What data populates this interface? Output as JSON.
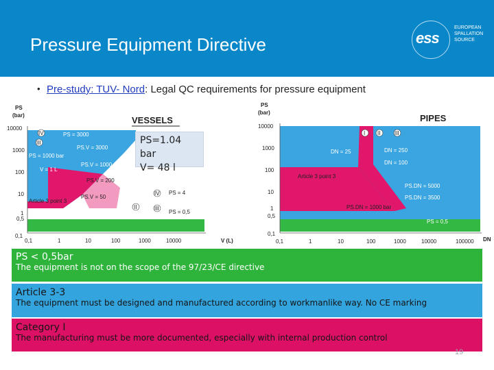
{
  "header": {
    "title": "Pressure Equipment Directive",
    "logo_mark": "ess",
    "logo_text": "EUROPEAN\nSPALLATION\nSOURCE"
  },
  "bullet": {
    "link_text": "Pre-study: TUV- Nord",
    "rest_text": ": Legal QC requirements for pressure equipment"
  },
  "callout": {
    "line1": "PS=1.04 bar",
    "line2": "V= 48 l"
  },
  "figure": {
    "vessels": {
      "title": "VESSELS",
      "y_unit": "PS",
      "y_unit2": "(bar)",
      "x_unit": "V (L)",
      "y_ticks": [
        "10000",
        "1000",
        "100",
        "10",
        "1",
        "0,5",
        "0,1"
      ],
      "x_ticks": [
        "0,1",
        "1",
        "10",
        "100",
        "1000",
        "10000"
      ],
      "zone_labels": {
        "ps3000": "PS = 3000",
        "psv3000": "PS.V = 3000",
        "ps1000": "PS = 1000 bar",
        "psv1000": "PS.V = 1000",
        "v1": "V = 1 L",
        "psv200": "PS.V = 200",
        "psv50": "PS.V = 50",
        "ps4": "PS = 4",
        "ps05": "PS = 0,5",
        "art33": "Article 3 point 3"
      },
      "roman": [
        "IV",
        "III",
        "IV",
        "II",
        "III"
      ]
    },
    "pipes": {
      "title": "PIPES",
      "y_unit": "PS",
      "y_unit2": "(bar)",
      "x_unit": "DN",
      "y_ticks": [
        "10000",
        "1000",
        "100",
        "10",
        "1",
        "0,5",
        "0,1"
      ],
      "x_ticks": [
        "0,1",
        "1",
        "10",
        "100",
        "1000",
        "10000",
        "100000"
      ],
      "zone_labels": {
        "dn25": "DN = 25",
        "dn250": "DN = 250",
        "dn100": "DN = 100",
        "art33": "Article 3 point 3",
        "psdn5000": "PS.DN = 5000",
        "psdn3500": "PS.DN = 3500",
        "psdn1000": "PS.DN = 1000 bar",
        "ps05": "PS = 0,5"
      },
      "roman": [
        "I",
        "II",
        "III"
      ]
    }
  },
  "boxes": {
    "green": {
      "heading": "PS < 0,5bar",
      "text": "The equipment is not on the scope of the 97/23/CE directive"
    },
    "blue": {
      "heading": "Article 3-3",
      "text": "The equipment must be designed and manufactured according  to workmanlike way. No CE marking"
    },
    "pink": {
      "heading": "Category I",
      "text": "The manufacturing must be more documented, especially with internal production control"
    }
  },
  "page_number": "19",
  "colors": {
    "header": "#0a87c9",
    "green_box": "#2fb43b",
    "blue_box": "#33a4dd",
    "pink_box": "#dc1165",
    "zone_blue": "#3aa5e0",
    "zone_pink": "#e0176a",
    "zone_green": "#33b843"
  }
}
